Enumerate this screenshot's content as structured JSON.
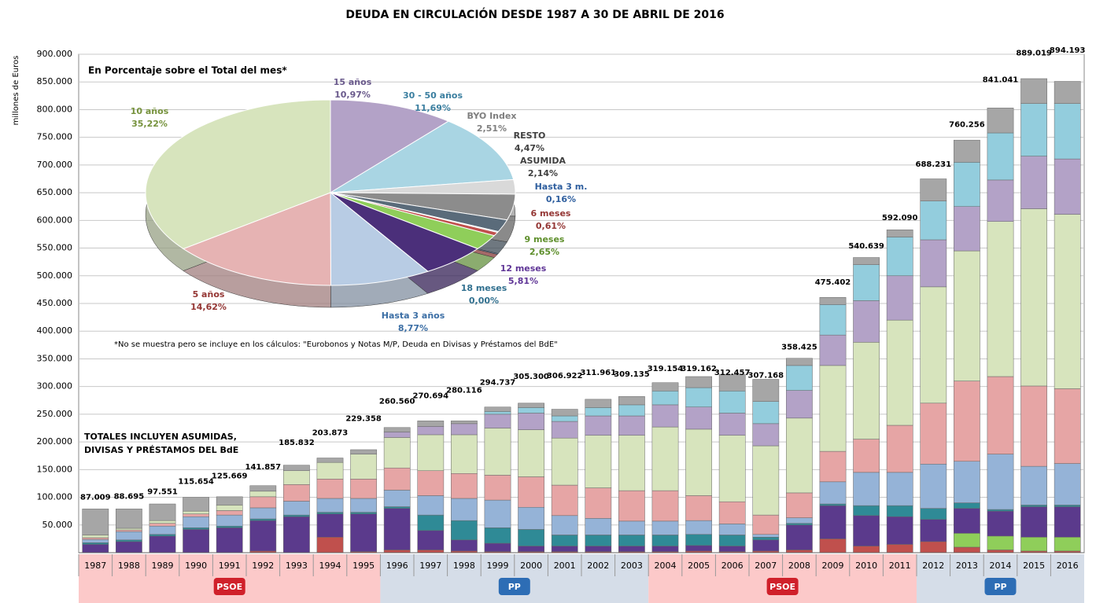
{
  "chart_data": [
    {
      "type": "bar",
      "title": "DEUDA EN CIRCULACIÓN DESDE 1987 A 30 DE ABRIL DE 2016",
      "y_label": "millones de Euros",
      "note": [
        "TOTALES INCLUYEN ASUMIDAS,",
        "DIVISAS Y PRÉSTAMOS  DEL BdE"
      ],
      "categories": [
        "1987",
        "1988",
        "1989",
        "1990",
        "1991",
        "1992",
        "1993",
        "1994",
        "1995",
        "1996",
        "1997",
        "1998",
        "1999",
        "2000",
        "2001",
        "2002",
        "2003",
        "2004",
        "2005",
        "2006",
        "2007",
        "2008",
        "2009",
        "2010",
        "2011",
        "2012",
        "2013",
        "2014",
        "2015",
        "2016"
      ],
      "ylim": [
        0,
        900000
      ],
      "yticks": [
        {
          "value": 50000,
          "label": "50.000"
        },
        {
          "value": 100000,
          "label": "100.000"
        },
        {
          "value": 150000,
          "label": "150.000"
        },
        {
          "value": 200000,
          "label": "200.000"
        },
        {
          "value": 250000,
          "label": "250.000"
        },
        {
          "value": 300000,
          "label": "300.000"
        },
        {
          "value": 350000,
          "label": "350.000"
        },
        {
          "value": 400000,
          "label": "400.000"
        },
        {
          "value": 450000,
          "label": "450.000"
        },
        {
          "value": 500000,
          "label": "500.000"
        },
        {
          "value": 550000,
          "label": "550.000"
        },
        {
          "value": 600000,
          "label": "600.000"
        },
        {
          "value": 650000,
          "label": "650.000"
        },
        {
          "value": 700000,
          "label": "700.000"
        },
        {
          "value": 750000,
          "label": "750.000"
        },
        {
          "value": 800000,
          "label": "800.000"
        },
        {
          "value": 850000,
          "label": "850.000"
        },
        {
          "value": 900000,
          "label": "900.000"
        }
      ],
      "grid": true,
      "stacked": true,
      "series": [
        {
          "color": "#c0504d",
          "values": [
            0,
            0,
            0,
            0,
            0,
            3000,
            0,
            28000,
            2000,
            5000,
            5000,
            3000,
            2000,
            2000,
            2000,
            2000,
            2000,
            2000,
            3000,
            2000,
            3000,
            5000,
            25000,
            12000,
            15000,
            20000,
            10000,
            5000,
            3000,
            3000
          ]
        },
        {
          "color": "#8fce5a",
          "values": [
            0,
            0,
            0,
            0,
            0,
            0,
            0,
            0,
            0,
            0,
            0,
            0,
            0,
            0,
            0,
            0,
            0,
            0,
            0,
            0,
            0,
            0,
            0,
            0,
            0,
            0,
            25000,
            25000,
            25000,
            25000
          ]
        },
        {
          "color": "#5b3a8c",
          "values": [
            15000,
            20000,
            30000,
            42000,
            45000,
            55000,
            65000,
            42000,
            68000,
            75000,
            35000,
            20000,
            15000,
            10000,
            10000,
            10000,
            10000,
            10000,
            10000,
            10000,
            20000,
            45000,
            60000,
            55000,
            50000,
            40000,
            45000,
            45000,
            55000,
            55000
          ]
        },
        {
          "color": "#2f8a96",
          "values": [
            3000,
            3000,
            3000,
            3000,
            3000,
            3000,
            3000,
            3000,
            3000,
            3000,
            28000,
            35000,
            28000,
            30000,
            20000,
            20000,
            20000,
            20000,
            20000,
            20000,
            5000,
            3000,
            3000,
            18000,
            20000,
            20000,
            10000,
            3000,
            3000,
            3000
          ]
        },
        {
          "color": "#95b3d7",
          "values": [
            6000,
            15000,
            15000,
            20000,
            20000,
            20000,
            25000,
            25000,
            25000,
            30000,
            35000,
            40000,
            50000,
            40000,
            35000,
            30000,
            25000,
            25000,
            25000,
            20000,
            5000,
            10000,
            40000,
            60000,
            60000,
            80000,
            75000,
            100000,
            70000,
            75000
          ]
        },
        {
          "color": "#e6a5a5",
          "values": [
            3000,
            3000,
            5000,
            5000,
            8000,
            20000,
            30000,
            35000,
            35000,
            40000,
            45000,
            45000,
            45000,
            55000,
            55000,
            55000,
            55000,
            55000,
            45000,
            40000,
            35000,
            45000,
            55000,
            60000,
            85000,
            110000,
            145000,
            140000,
            145000,
            135000
          ]
        },
        {
          "color": "#d7e4bd",
          "values": [
            5000,
            3000,
            5000,
            5000,
            10000,
            10000,
            25000,
            30000,
            45000,
            55000,
            65000,
            70000,
            85000,
            85000,
            85000,
            95000,
            100000,
            115000,
            120000,
            120000,
            125000,
            135000,
            155000,
            175000,
            190000,
            210000,
            235000,
            280000,
            320000,
            315000
          ]
        },
        {
          "color": "#b3a2c7",
          "values": [
            0,
            0,
            0,
            0,
            0,
            0,
            0,
            0,
            0,
            10000,
            15000,
            20000,
            25000,
            30000,
            30000,
            35000,
            35000,
            40000,
            40000,
            40000,
            40000,
            50000,
            55000,
            75000,
            80000,
            85000,
            80000,
            75000,
            95000,
            100000
          ]
        },
        {
          "color": "#93cddd",
          "values": [
            0,
            0,
            0,
            0,
            0,
            0,
            0,
            0,
            0,
            0,
            0,
            0,
            5000,
            10000,
            10000,
            15000,
            20000,
            25000,
            35000,
            40000,
            40000,
            45000,
            55000,
            65000,
            70000,
            70000,
            80000,
            85000,
            95000,
            100000
          ]
        },
        {
          "color": "#a6a6a6",
          "values": [
            47000,
            35000,
            30000,
            25000,
            15000,
            10000,
            10000,
            8000,
            8000,
            8000,
            10000,
            5000,
            8000,
            8000,
            12000,
            15000,
            15000,
            15000,
            20000,
            30000,
            40000,
            13000,
            13000,
            13000,
            13000,
            40000,
            40000,
            45000,
            45000,
            40000
          ]
        }
      ],
      "totals": {
        "values": [
          87009,
          88695,
          97551,
          115654,
          125669,
          141857,
          185832,
          203873,
          229358,
          260560,
          270694,
          280116,
          294737,
          305300,
          306922,
          311961,
          309135,
          319154,
          319162,
          312457,
          307168,
          358425,
          475402,
          540639,
          592090,
          688231,
          760256,
          841041,
          889019,
          894193
        ],
        "value_labels": [
          "87.009",
          "88.695",
          "97.551",
          "115.654",
          "125.669",
          "141.857",
          "185.832",
          "203.873",
          "229.358",
          "260.560",
          "270.694",
          "280.116",
          "294.737",
          "305.300",
          "306.922",
          "311.961",
          "309.135",
          "319.154",
          "319.162",
          "312.457",
          "307.168",
          "358.425",
          "475.402",
          "540.639",
          "592.090",
          "688.231",
          "760.256",
          "841.041",
          "889.019",
          "894.193"
        ]
      }
    },
    {
      "type": "pie",
      "title": "En Porcentaje sobre el Total del mes*",
      "footnote": "*No se muestra pero se incluye en los cálculos: \"Eurobonos y Notas  M/P, Deuda en Divisas y Préstamos del BdE\"",
      "categories": [
        "15 años",
        "30 - 50 años",
        "BYO Index",
        "RESTO",
        "ASUMIDA",
        "Hasta 3 m.",
        "6 meses",
        "9 meses",
        "12 meses",
        "18 meses",
        "Hasta 3 años",
        "5 años",
        "10 años"
      ],
      "values": [
        10.97,
        11.69,
        2.51,
        4.47,
        2.14,
        0.16,
        0.61,
        2.65,
        5.81,
        0.0,
        8.77,
        14.62,
        35.22
      ],
      "value_labels": [
        "10,97%",
        "11,69%",
        "2,51%",
        "4,47%",
        "2,14%",
        "0,16%",
        "0,61%",
        "2,65%",
        "5,81%",
        "0,00%",
        "8,77%",
        "14,62%",
        "35,22%"
      ],
      "colors": [
        "#b3a2c7",
        "#a9d5e3",
        "#d9d9d9",
        "#8c8c8c",
        "#5a6b7a",
        "#4a7eb5",
        "#c0504d",
        "#8fce5a",
        "#4b2f7a",
        "#1f6f7a",
        "#b8cce4",
        "#e6b3b3",
        "#d7e4bd"
      ]
    }
  ],
  "party_periods": [
    {
      "label": "PSOE",
      "from": 0,
      "to": 8,
      "color": "#fcc9c9"
    },
    {
      "label": "PP",
      "from": 9,
      "to": 16,
      "color": "#d5dde8"
    },
    {
      "label": "PSOE",
      "from": 17,
      "to": 24,
      "color": "#fcc9c9"
    },
    {
      "label": "PP",
      "from": 25,
      "to": 29,
      "color": "#d5dde8"
    }
  ]
}
